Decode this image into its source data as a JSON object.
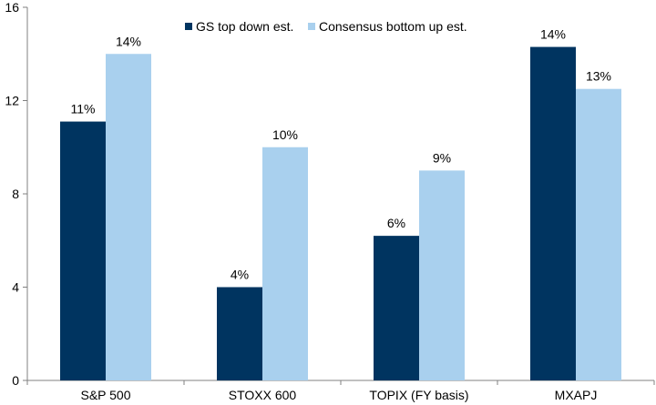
{
  "chart_data": {
    "type": "bar",
    "title": "",
    "xlabel": "",
    "ylabel": "",
    "categories": [
      "S&P 500",
      "STOXX 600",
      "TOPIX (FY basis)",
      "MXAPJ"
    ],
    "ylim": [
      0,
      16
    ],
    "yticks": [
      0,
      4,
      8,
      12,
      16
    ],
    "grid": false,
    "legend_position": "top-center",
    "series": [
      {
        "name": "GS top down est.",
        "color": "#003460",
        "values": [
          11.1,
          4.0,
          6.2,
          14.3
        ],
        "labels": [
          "11%",
          "4%",
          "6%",
          "14%"
        ]
      },
      {
        "name": "Consensus bottom up est.",
        "color": "#A9D0EE",
        "values": [
          14.0,
          10.0,
          9.0,
          12.5
        ],
        "labels": [
          "14%",
          "10%",
          "9%",
          "13%"
        ]
      }
    ]
  }
}
